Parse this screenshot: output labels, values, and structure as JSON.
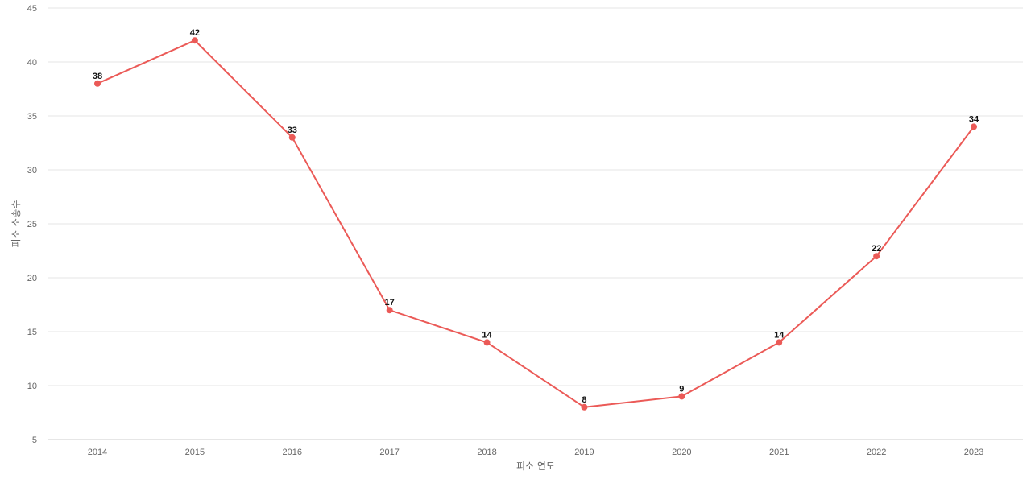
{
  "chart_data": {
    "type": "line",
    "title": "",
    "xlabel": "피소 연도",
    "ylabel": "피소 소송수",
    "categories": [
      "2014",
      "2015",
      "2016",
      "2017",
      "2018",
      "2019",
      "2020",
      "2021",
      "2022",
      "2023"
    ],
    "series": [
      {
        "values": [
          38,
          42,
          33,
          17,
          14,
          8,
          9,
          14,
          22,
          34
        ],
        "color": "#eb5a57"
      }
    ],
    "ylim": [
      5,
      45
    ],
    "yticks": [
      "5",
      "10",
      "15",
      "20",
      "25",
      "30",
      "35",
      "40",
      "45"
    ],
    "grid": true,
    "data_labels": true
  }
}
